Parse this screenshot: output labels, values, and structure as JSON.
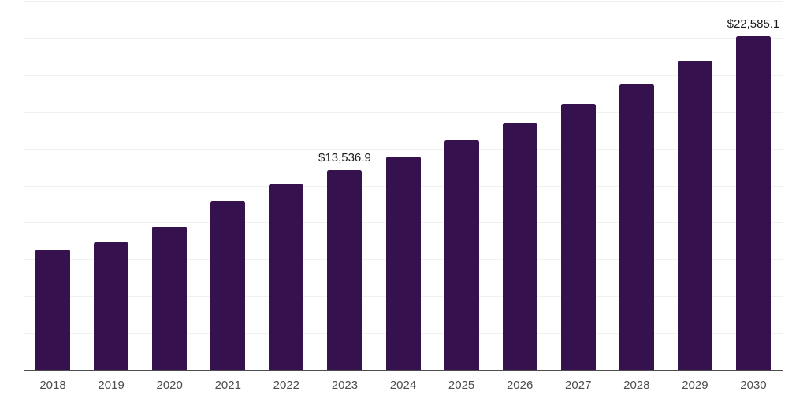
{
  "chart_data": {
    "type": "bar",
    "title": "",
    "xlabel": "",
    "ylabel": "",
    "categories": [
      "2018",
      "2019",
      "2020",
      "2021",
      "2022",
      "2023",
      "2024",
      "2025",
      "2026",
      "2027",
      "2028",
      "2029",
      "2030"
    ],
    "values": [
      8155,
      8650,
      9700,
      11405,
      12565,
      13536.9,
      14445,
      15550,
      16735,
      18030,
      19365,
      20965,
      22585.1
    ],
    "data_labels": [
      null,
      null,
      null,
      null,
      null,
      "$13,536.9",
      null,
      null,
      null,
      null,
      null,
      null,
      "$22,585.1"
    ],
    "ylim": [
      0,
      25000
    ],
    "gridline_interval": 2500,
    "grid": "horizontal",
    "legend_position": "none"
  },
  "style": {
    "bar_color": "#35114E",
    "gridline_color": "#f0f0f0",
    "axis_line_color": "#4d4d4d",
    "x_tick_label_color": "#4d4d4d",
    "data_label_color": "#1a1a1a",
    "background_color": "#ffffff"
  }
}
